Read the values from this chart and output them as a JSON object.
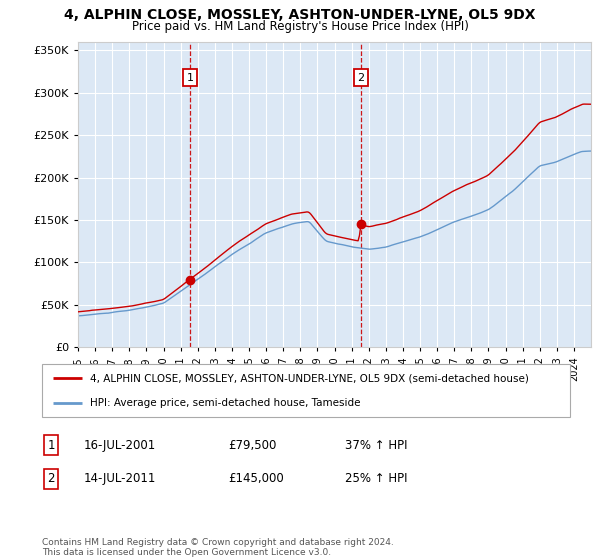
{
  "title": "4, ALPHIN CLOSE, MOSSLEY, ASHTON-UNDER-LYNE, OL5 9DX",
  "subtitle": "Price paid vs. HM Land Registry's House Price Index (HPI)",
  "legend_line1": "4, ALPHIN CLOSE, MOSSLEY, ASHTON-UNDER-LYNE, OL5 9DX (semi-detached house)",
  "legend_line2": "HPI: Average price, semi-detached house, Tameside",
  "footer": "Contains HM Land Registry data © Crown copyright and database right 2024.\nThis data is licensed under the Open Government Licence v3.0.",
  "sale1_date": "16-JUL-2001",
  "sale1_price": "£79,500",
  "sale1_hpi": "37% ↑ HPI",
  "sale1_x": 2001.54,
  "sale1_y": 79500,
  "sale2_date": "14-JUL-2011",
  "sale2_price": "£145,000",
  "sale2_hpi": "25% ↑ HPI",
  "sale2_x": 2011.54,
  "sale2_y": 145000,
  "hpi_color": "#6699cc",
  "sale_color": "#cc0000",
  "fill_color": "#dce8f5",
  "plot_bg_color": "#dce8f5",
  "ylim": [
    0,
    360000
  ],
  "xlim_start": 1995,
  "xlim_end": 2025
}
